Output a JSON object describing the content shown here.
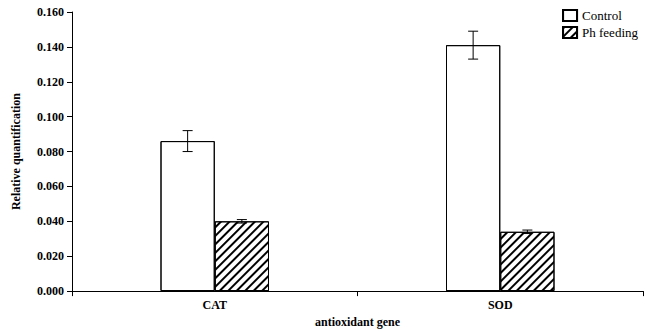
{
  "chart_data": {
    "type": "bar",
    "categories": [
      "CAT",
      "SOD"
    ],
    "series": [
      {
        "name": "Control",
        "color": "#ffffff",
        "values": [
          0.086,
          0.141
        ],
        "errors": [
          0.006,
          0.008
        ]
      },
      {
        "name": "Ph feeding",
        "color": "#000000",
        "values": [
          0.04,
          0.034
        ],
        "errors": [
          0.001,
          0.001
        ]
      }
    ],
    "x_label": "antioxidant gene",
    "y_label": "Relative quantification",
    "ylim": [
      0,
      0.16
    ],
    "yticks": [
      {
        "value": 0,
        "label": "0.000"
      },
      {
        "value": 0.02,
        "label": "0.020"
      },
      {
        "value": 0.04,
        "label": "0.040"
      },
      {
        "value": 0.06,
        "label": "0.060"
      },
      {
        "value": 0.08,
        "label": "0.080"
      },
      {
        "value": 0.1,
        "label": "0.100"
      },
      {
        "value": 0.12,
        "label": "0.120"
      },
      {
        "value": 0.14,
        "label": "0.140"
      },
      {
        "value": 0.16,
        "label": "0.160"
      }
    ],
    "grid": false,
    "legend": "upper right"
  }
}
